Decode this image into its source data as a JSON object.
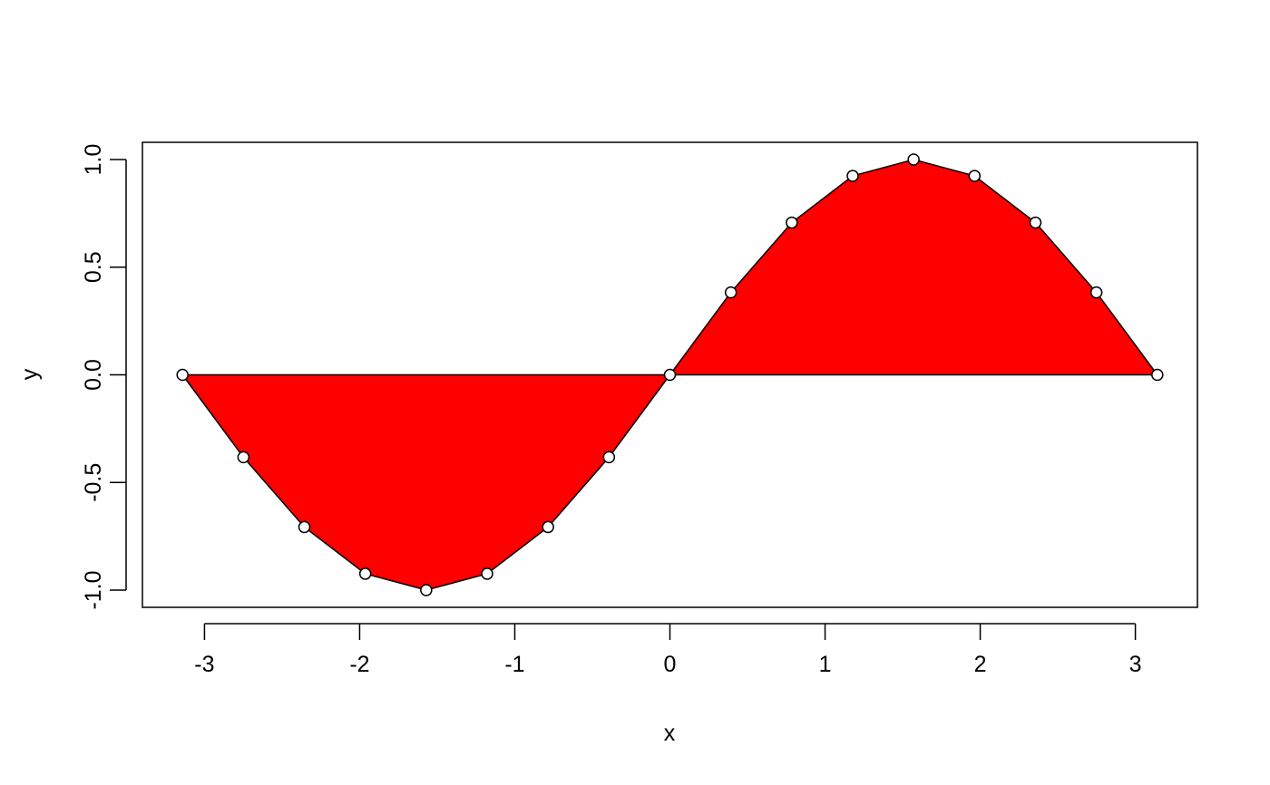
{
  "chart_data": {
    "type": "area",
    "xlabel": "x",
    "ylabel": "y",
    "xlim": [
      -3.4,
      3.4
    ],
    "ylim": [
      -1.08,
      1.08
    ],
    "x_ticks": [
      -3,
      -2,
      -1,
      0,
      1,
      2,
      3
    ],
    "x_tick_labels": [
      "-3",
      "-2",
      "-1",
      "0",
      "1",
      "2",
      "3"
    ],
    "y_ticks": [
      -1.0,
      -0.5,
      0.0,
      0.5,
      1.0
    ],
    "y_tick_labels": [
      "-1.0",
      "-0.5",
      "0.0",
      "0.5",
      "1.0"
    ],
    "grid": false,
    "fill_color": "#ff0000",
    "line_color": "#000000",
    "baseline": 0,
    "series": [
      {
        "x": [
          -3.1416,
          -2.7489,
          -2.3562,
          -1.9635,
          -1.5708,
          -1.1781,
          -0.7854,
          -0.3927,
          0.0,
          0.3927,
          0.7854,
          1.1781,
          1.5708,
          1.9635,
          2.3562,
          2.7489,
          3.1416
        ],
        "y": [
          0.0,
          -0.3827,
          -0.7071,
          -0.9239,
          -1.0,
          -0.9239,
          -0.7071,
          -0.3827,
          0.0,
          0.3827,
          0.7071,
          0.9239,
          1.0,
          0.9239,
          0.7071,
          0.3827,
          0.0
        ]
      }
    ]
  }
}
